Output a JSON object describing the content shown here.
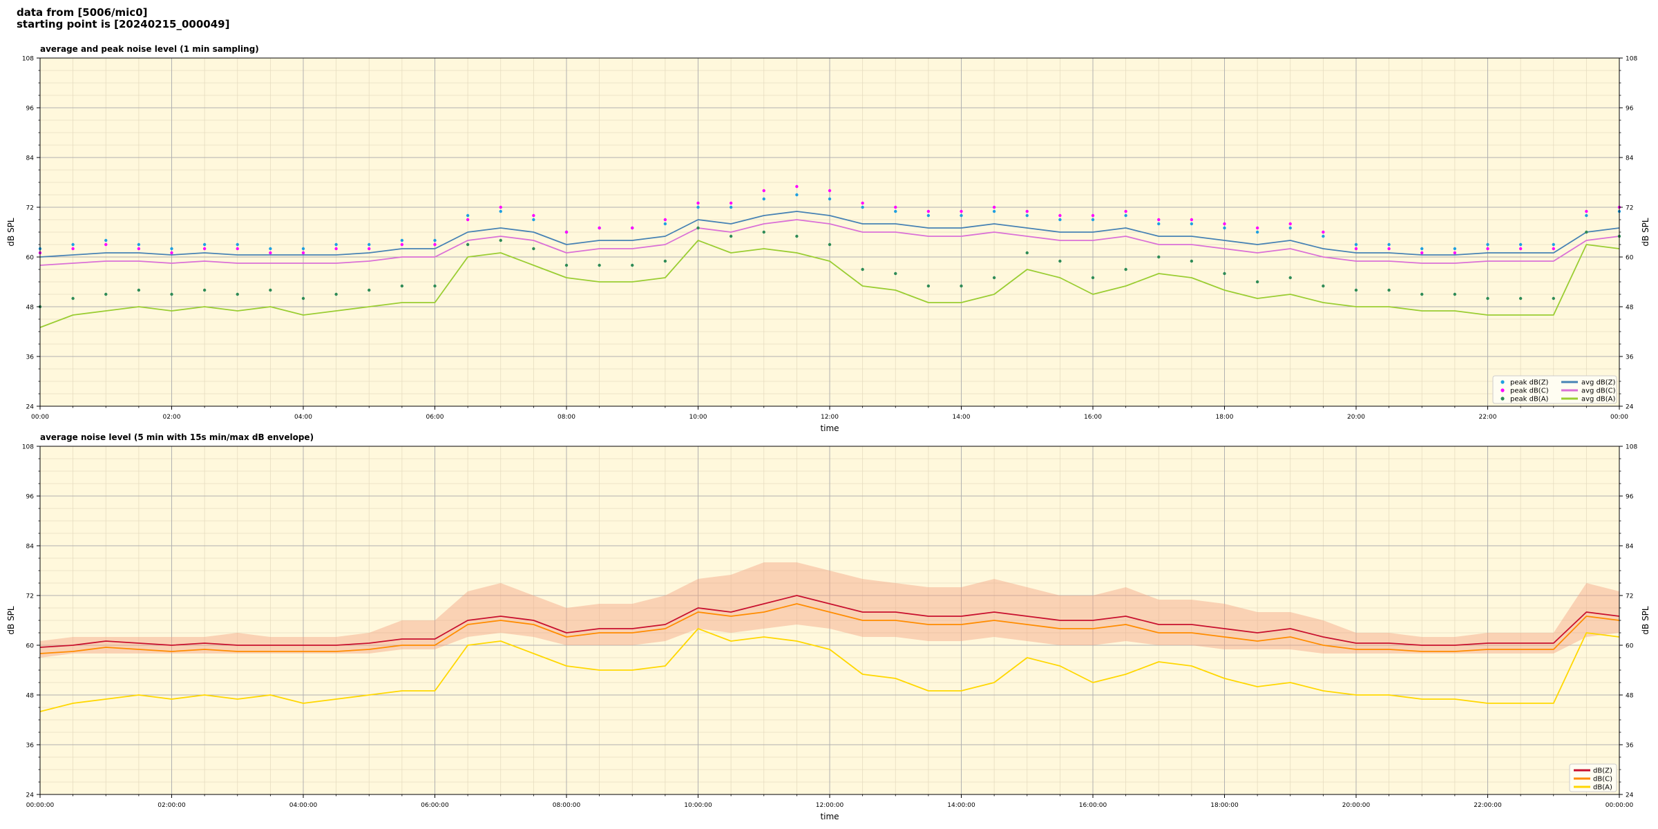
{
  "header": {
    "line1": "data from [5006/mic0]",
    "line2": "starting point is [20240215_000049]"
  },
  "chart_data": [
    {
      "type": "line",
      "title": "average and peak noise level (1 min sampling)",
      "xlabel": "time",
      "ylabel": "dB SPL",
      "ylim": [
        24,
        108
      ],
      "yticks": [
        24,
        36,
        48,
        60,
        72,
        84,
        96,
        108
      ],
      "xlim_hours": [
        0,
        24
      ],
      "xticks": [
        "00:00",
        "02:00",
        "04:00",
        "06:00",
        "08:00",
        "10:00",
        "12:00",
        "14:00",
        "16:00",
        "18:00",
        "20:00",
        "22:00",
        "00:00"
      ],
      "grid": true,
      "background": "#fff8dc",
      "legend_position": "lower-right",
      "series": [
        {
          "name": "avg dB(Z)",
          "color": "#4682b4",
          "kind": "line",
          "x": [
            0,
            0.5,
            1,
            1.5,
            2,
            2.5,
            3,
            3.5,
            4,
            4.5,
            5,
            5.5,
            6,
            6.5,
            7,
            7.5,
            8,
            8.5,
            9,
            9.5,
            10,
            10.5,
            11,
            11.5,
            12,
            12.5,
            13,
            13.5,
            14,
            14.5,
            15,
            15.5,
            16,
            16.5,
            17,
            17.5,
            18,
            18.5,
            19,
            19.5,
            20,
            20.5,
            21,
            21.5,
            22,
            22.5,
            23,
            23.5,
            24
          ],
          "y": [
            60,
            60.5,
            61,
            61,
            60.5,
            61,
            60.5,
            60.5,
            60.5,
            60.5,
            61,
            62,
            62,
            66,
            67,
            66,
            63,
            64,
            64,
            65,
            69,
            68,
            70,
            71,
            70,
            68,
            68,
            67,
            67,
            68,
            67,
            66,
            66,
            67,
            65,
            65,
            64,
            63,
            64,
            62,
            61,
            61,
            60.5,
            60.5,
            61,
            61,
            61,
            66,
            67
          ]
        },
        {
          "name": "avg dB(C)",
          "color": "#da70d6",
          "kind": "line",
          "x": [
            0,
            0.5,
            1,
            1.5,
            2,
            2.5,
            3,
            3.5,
            4,
            4.5,
            5,
            5.5,
            6,
            6.5,
            7,
            7.5,
            8,
            8.5,
            9,
            9.5,
            10,
            10.5,
            11,
            11.5,
            12,
            12.5,
            13,
            13.5,
            14,
            14.5,
            15,
            15.5,
            16,
            16.5,
            17,
            17.5,
            18,
            18.5,
            19,
            19.5,
            20,
            20.5,
            21,
            21.5,
            22,
            22.5,
            23,
            23.5,
            24
          ],
          "y": [
            58,
            58.5,
            59,
            59,
            58.5,
            59,
            58.5,
            58.5,
            58.5,
            58.5,
            59,
            60,
            60,
            64,
            65,
            64,
            61,
            62,
            62,
            63,
            67,
            66,
            68,
            69,
            68,
            66,
            66,
            65,
            65,
            66,
            65,
            64,
            64,
            65,
            63,
            63,
            62,
            61,
            62,
            60,
            59,
            59,
            58.5,
            58.5,
            59,
            59,
            59,
            64,
            65
          ]
        },
        {
          "name": "avg dB(A)",
          "color": "#9acd32",
          "kind": "line",
          "x": [
            0,
            0.5,
            1,
            1.5,
            2,
            2.5,
            3,
            3.5,
            4,
            4.5,
            5,
            5.5,
            6,
            6.5,
            7,
            7.5,
            8,
            8.5,
            9,
            9.5,
            10,
            10.5,
            11,
            11.5,
            12,
            12.5,
            13,
            13.5,
            14,
            14.5,
            15,
            15.5,
            16,
            16.5,
            17,
            17.5,
            18,
            18.5,
            19,
            19.5,
            20,
            20.5,
            21,
            21.5,
            22,
            22.5,
            23,
            23.5,
            24
          ],
          "y": [
            43,
            46,
            47,
            48,
            47,
            48,
            47,
            48,
            46,
            47,
            48,
            49,
            49,
            60,
            61,
            58,
            55,
            54,
            54,
            55,
            64,
            61,
            62,
            61,
            59,
            53,
            52,
            49,
            49,
            51,
            57,
            55,
            51,
            53,
            56,
            55,
            52,
            50,
            51,
            49,
            48,
            48,
            47,
            47,
            46,
            46,
            46,
            63,
            62
          ]
        },
        {
          "name": "peak dB(Z)",
          "color": "#1f9fe0",
          "kind": "points",
          "x": [
            0,
            0.5,
            1,
            1.5,
            2,
            2.5,
            3,
            3.5,
            4,
            4.5,
            5,
            5.5,
            6,
            6.5,
            7,
            7.5,
            8,
            8.5,
            9,
            9.5,
            10,
            10.5,
            11,
            11.5,
            12,
            12.5,
            13,
            13.5,
            14,
            14.5,
            15,
            15.5,
            16,
            16.5,
            17,
            17.5,
            18,
            18.5,
            19,
            19.5,
            20,
            20.5,
            21,
            21.5,
            22,
            22.5,
            23,
            23.5,
            24
          ],
          "y": [
            62,
            63,
            64,
            63,
            62,
            63,
            63,
            62,
            62,
            63,
            63,
            64,
            64,
            70,
            71,
            69,
            66,
            67,
            67,
            68,
            72,
            72,
            74,
            75,
            74,
            72,
            71,
            70,
            70,
            71,
            70,
            69,
            69,
            70,
            68,
            68,
            67,
            66,
            67,
            65,
            63,
            63,
            62,
            62,
            63,
            63,
            63,
            70,
            71
          ]
        },
        {
          "name": "peak dB(C)",
          "color": "#ff00ff",
          "kind": "points",
          "x": [
            0,
            0.5,
            1,
            1.5,
            2,
            2.5,
            3,
            3.5,
            4,
            4.5,
            5,
            5.5,
            6,
            6.5,
            7,
            7.5,
            8,
            8.5,
            9,
            9.5,
            10,
            10.5,
            11,
            11.5,
            12,
            12.5,
            13,
            13.5,
            14,
            14.5,
            15,
            15.5,
            16,
            16.5,
            17,
            17.5,
            18,
            18.5,
            19,
            19.5,
            20,
            20.5,
            21,
            21.5,
            22,
            22.5,
            23,
            23.5,
            24
          ],
          "y": [
            61,
            62,
            63,
            62,
            61,
            62,
            62,
            61,
            61,
            62,
            62,
            63,
            63,
            69,
            72,
            70,
            66,
            67,
            67,
            69,
            73,
            73,
            76,
            77,
            76,
            73,
            72,
            71,
            71,
            72,
            71,
            70,
            70,
            71,
            69,
            69,
            68,
            67,
            68,
            66,
            62,
            62,
            61,
            61,
            62,
            62,
            62,
            71,
            72
          ]
        },
        {
          "name": "peak dB(A)",
          "color": "#2e8b57",
          "kind": "points",
          "x": [
            0,
            0.5,
            1,
            1.5,
            2,
            2.5,
            3,
            3.5,
            4,
            4.5,
            5,
            5.5,
            6,
            6.5,
            7,
            7.5,
            8,
            8.5,
            9,
            9.5,
            10,
            10.5,
            11,
            11.5,
            12,
            12.5,
            13,
            13.5,
            14,
            14.5,
            15,
            15.5,
            16,
            16.5,
            17,
            17.5,
            18,
            18.5,
            19,
            19.5,
            20,
            20.5,
            21,
            21.5,
            22,
            22.5,
            23,
            23.5,
            24
          ],
          "y": [
            48,
            50,
            51,
            52,
            51,
            52,
            51,
            52,
            50,
            51,
            52,
            53,
            53,
            63,
            64,
            62,
            58,
            58,
            58,
            59,
            67,
            65,
            66,
            65,
            63,
            57,
            56,
            53,
            53,
            55,
            61,
            59,
            55,
            57,
            60,
            59,
            56,
            54,
            55,
            53,
            52,
            52,
            51,
            51,
            50,
            50,
            50,
            66,
            65
          ]
        }
      ]
    },
    {
      "type": "line",
      "title": "average noise level (5 min with 15s min/max dB envelope)",
      "xlabel": "time",
      "ylabel": "dB SPL",
      "ylim": [
        24,
        108
      ],
      "yticks": [
        24,
        36,
        48,
        60,
        72,
        84,
        96,
        108
      ],
      "xlim_hours": [
        0,
        24
      ],
      "xticks": [
        "00:00:00",
        "02:00:00",
        "04:00:00",
        "06:00:00",
        "08:00:00",
        "10:00:00",
        "12:00:00",
        "14:00:00",
        "16:00:00",
        "18:00:00",
        "20:00:00",
        "22:00:00",
        "00:00:00"
      ],
      "grid": true,
      "background": "#fff8dc",
      "legend_position": "lower-right",
      "envelope": {
        "color": "#f4a582",
        "x": [
          0,
          0.5,
          1,
          1.5,
          2,
          2.5,
          3,
          3.5,
          4,
          4.5,
          5,
          5.5,
          6,
          6.5,
          7,
          7.5,
          8,
          8.5,
          9,
          9.5,
          10,
          10.5,
          11,
          11.5,
          12,
          12.5,
          13,
          13.5,
          14,
          14.5,
          15,
          15.5,
          16,
          16.5,
          17,
          17.5,
          18,
          18.5,
          19,
          19.5,
          20,
          20.5,
          21,
          21.5,
          22,
          22.5,
          23,
          23.5,
          24
        ],
        "low": [
          57,
          58,
          58,
          58,
          58,
          58,
          58,
          58,
          58,
          58,
          58,
          59,
          59,
          62,
          63,
          62,
          60,
          60,
          60,
          61,
          64,
          63,
          64,
          65,
          64,
          62,
          62,
          61,
          61,
          62,
          61,
          60,
          60,
          61,
          60,
          60,
          59,
          59,
          59,
          58,
          58,
          58,
          58,
          58,
          58,
          58,
          58,
          62,
          63
        ],
        "high": [
          61,
          62,
          62,
          62,
          62,
          62,
          63,
          62,
          62,
          62,
          63,
          66,
          66,
          73,
          75,
          72,
          69,
          70,
          70,
          72,
          76,
          77,
          80,
          80,
          78,
          76,
          75,
          74,
          74,
          76,
          74,
          72,
          72,
          74,
          71,
          71,
          70,
          68,
          68,
          66,
          63,
          63,
          62,
          62,
          63,
          63,
          63,
          75,
          73
        ]
      },
      "series": [
        {
          "name": "dB(Z)",
          "color": "#c8102e",
          "x": [
            0,
            0.5,
            1,
            1.5,
            2,
            2.5,
            3,
            3.5,
            4,
            4.5,
            5,
            5.5,
            6,
            6.5,
            7,
            7.5,
            8,
            8.5,
            9,
            9.5,
            10,
            10.5,
            11,
            11.5,
            12,
            12.5,
            13,
            13.5,
            14,
            14.5,
            15,
            15.5,
            16,
            16.5,
            17,
            17.5,
            18,
            18.5,
            19,
            19.5,
            20,
            20.5,
            21,
            21.5,
            22,
            22.5,
            23,
            23.5,
            24
          ],
          "y": [
            59.5,
            60,
            61,
            60.5,
            60,
            60.5,
            60,
            60,
            60,
            60,
            60.5,
            61.5,
            61.5,
            66,
            67,
            66,
            63,
            64,
            64,
            65,
            69,
            68,
            70,
            72,
            70,
            68,
            68,
            67,
            67,
            68,
            67,
            66,
            66,
            67,
            65,
            65,
            64,
            63,
            64,
            62,
            60.5,
            60.5,
            60,
            60,
            60.5,
            60.5,
            60.5,
            68,
            67
          ]
        },
        {
          "name": "dB(C)",
          "color": "#ff8c00",
          "x": [
            0,
            0.5,
            1,
            1.5,
            2,
            2.5,
            3,
            3.5,
            4,
            4.5,
            5,
            5.5,
            6,
            6.5,
            7,
            7.5,
            8,
            8.5,
            9,
            9.5,
            10,
            10.5,
            11,
            11.5,
            12,
            12.5,
            13,
            13.5,
            14,
            14.5,
            15,
            15.5,
            16,
            16.5,
            17,
            17.5,
            18,
            18.5,
            19,
            19.5,
            20,
            20.5,
            21,
            21.5,
            22,
            22.5,
            23,
            23.5,
            24
          ],
          "y": [
            58,
            58.5,
            59.5,
            59,
            58.5,
            59,
            58.5,
            58.5,
            58.5,
            58.5,
            59,
            60,
            60,
            65,
            66,
            65,
            62,
            63,
            63,
            64,
            68,
            67,
            68,
            70,
            68,
            66,
            66,
            65,
            65,
            66,
            65,
            64,
            64,
            65,
            63,
            63,
            62,
            61,
            62,
            60,
            59,
            59,
            58.5,
            58.5,
            59,
            59,
            59,
            67,
            66
          ]
        },
        {
          "name": "dB(A)",
          "color": "#ffd700",
          "x": [
            0,
            0.5,
            1,
            1.5,
            2,
            2.5,
            3,
            3.5,
            4,
            4.5,
            5,
            5.5,
            6,
            6.5,
            7,
            7.5,
            8,
            8.5,
            9,
            9.5,
            10,
            10.5,
            11,
            11.5,
            12,
            12.5,
            13,
            13.5,
            14,
            14.5,
            15,
            15.5,
            16,
            16.5,
            17,
            17.5,
            18,
            18.5,
            19,
            19.5,
            20,
            20.5,
            21,
            21.5,
            22,
            22.5,
            23,
            23.5,
            24
          ],
          "y": [
            44,
            46,
            47,
            48,
            47,
            48,
            47,
            48,
            46,
            47,
            48,
            49,
            49,
            60,
            61,
            58,
            55,
            54,
            54,
            55,
            64,
            61,
            62,
            61,
            59,
            53,
            52,
            49,
            49,
            51,
            57,
            55,
            51,
            53,
            56,
            55,
            52,
            50,
            51,
            49,
            48,
            48,
            47,
            47,
            46,
            46,
            46,
            63,
            62
          ]
        }
      ]
    }
  ]
}
